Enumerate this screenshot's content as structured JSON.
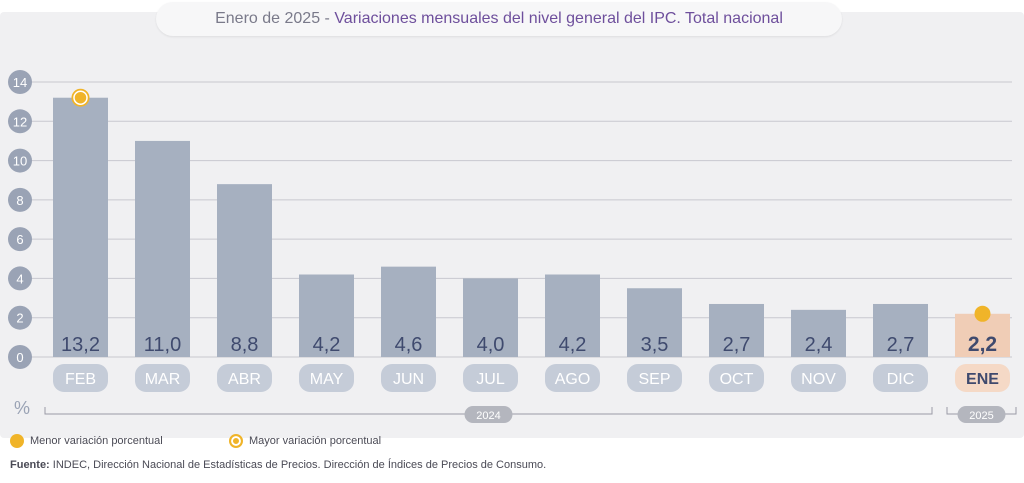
{
  "header": {
    "title_prefix": "Enero de 2025 - ",
    "title_main": "Variaciones mensuales del nivel general del IPC. Total nacional"
  },
  "chart_data": {
    "type": "bar",
    "categories": [
      "FEB",
      "MAR",
      "ABR",
      "MAY",
      "JUN",
      "JUL",
      "AGO",
      "SEP",
      "OCT",
      "NOV",
      "DIC",
      "ENE"
    ],
    "values": [
      13.2,
      11.0,
      8.8,
      4.2,
      4.6,
      4.0,
      4.2,
      3.5,
      2.7,
      2.4,
      2.7,
      2.2
    ],
    "value_labels": [
      "13,2",
      "11,0",
      "8,8",
      "4,2",
      "4,6",
      "4,0",
      "4,2",
      "3,5",
      "2,7",
      "2,4",
      "2,7",
      "2,2"
    ],
    "ylim": [
      0,
      14
    ],
    "yticks": [
      0,
      2,
      4,
      6,
      8,
      10,
      12,
      14
    ],
    "ylabel": "%",
    "grid": true,
    "year_groups": [
      {
        "label": "2024",
        "from": "FEB",
        "to": "DIC"
      },
      {
        "label": "2025",
        "from": "ENE",
        "to": "ENE"
      }
    ],
    "max_marker_category": "FEB",
    "min_marker_category": "ENE",
    "highlight_category": "ENE"
  },
  "legend": {
    "min_label": "Menor variación porcentual",
    "max_label": "Mayor variación porcentual"
  },
  "footer": {
    "source_label": "Fuente:",
    "source_text": " INDEC, Dirección Nacional de Estadísticas de Precios. Dirección de Índices de Precios de Consumo."
  },
  "colors": {
    "bar": "#a6b0c0",
    "bar_highlight": "#f0cdb6",
    "category_pill": "#c5ccd8",
    "category_pill_highlight": "#f5d9c6",
    "value_text": "#3f4a6e",
    "marker": "#f0b429",
    "grid": "#c8c8cf",
    "tick_circle": "#9aa3b5",
    "title_accent": "#6e4f9c"
  }
}
